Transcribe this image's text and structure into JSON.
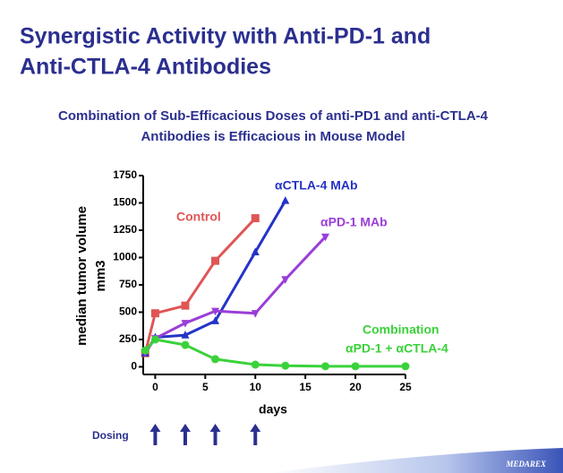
{
  "chart_data": {
    "type": "line",
    "title": [
      "Synergistic Activity with Anti-PD-1 and",
      "Anti-CTLA-4 Antibodies"
    ],
    "subtitle": [
      "Combination of Sub-Efficacious Doses of anti-PD1 and anti-CTLA-4",
      "Antibodies is Efficacious in Mouse Model"
    ],
    "xlabel": "days",
    "ylabel": [
      "median tumor volume",
      "mm3"
    ],
    "xlim": [
      -1.2,
      25
    ],
    "xticks": [
      0,
      5,
      10,
      15,
      20,
      25
    ],
    "ylim": [
      -70,
      1750
    ],
    "yticks": [
      0,
      250,
      500,
      750,
      1000,
      1250,
      1500,
      1750
    ],
    "series": [
      {
        "name": "Control",
        "color": "#e05555",
        "marker": "square",
        "x": [
          -1,
          0,
          3,
          6,
          10
        ],
        "values": [
          125,
          490,
          560,
          970,
          1360
        ]
      },
      {
        "name": "αCTLA-4 MAb",
        "color": "#2433c8",
        "marker": "triangle",
        "x": [
          -1,
          0,
          3,
          6,
          10,
          13
        ],
        "values": [
          125,
          270,
          290,
          420,
          1050,
          1520
        ]
      },
      {
        "name": "αPD-1 MAb",
        "color": "#9a3ed8",
        "marker": "triangle-down",
        "x": [
          -1,
          0,
          3,
          6,
          10,
          13,
          17
        ],
        "values": [
          130,
          260,
          400,
          510,
          490,
          800,
          1190
        ]
      },
      {
        "name": "Combination",
        "color": "#3ad23a",
        "marker": "circle",
        "x": [
          -1,
          0,
          3,
          6,
          10,
          13,
          17,
          20,
          25
        ],
        "values": [
          150,
          250,
          200,
          70,
          20,
          10,
          5,
          5,
          5
        ]
      }
    ],
    "annotation": "αPD-1 + αCTLA-4",
    "dosing": {
      "label": "Dosing",
      "days": [
        0,
        3,
        6,
        10
      ]
    },
    "footer": "MEDAREX"
  }
}
